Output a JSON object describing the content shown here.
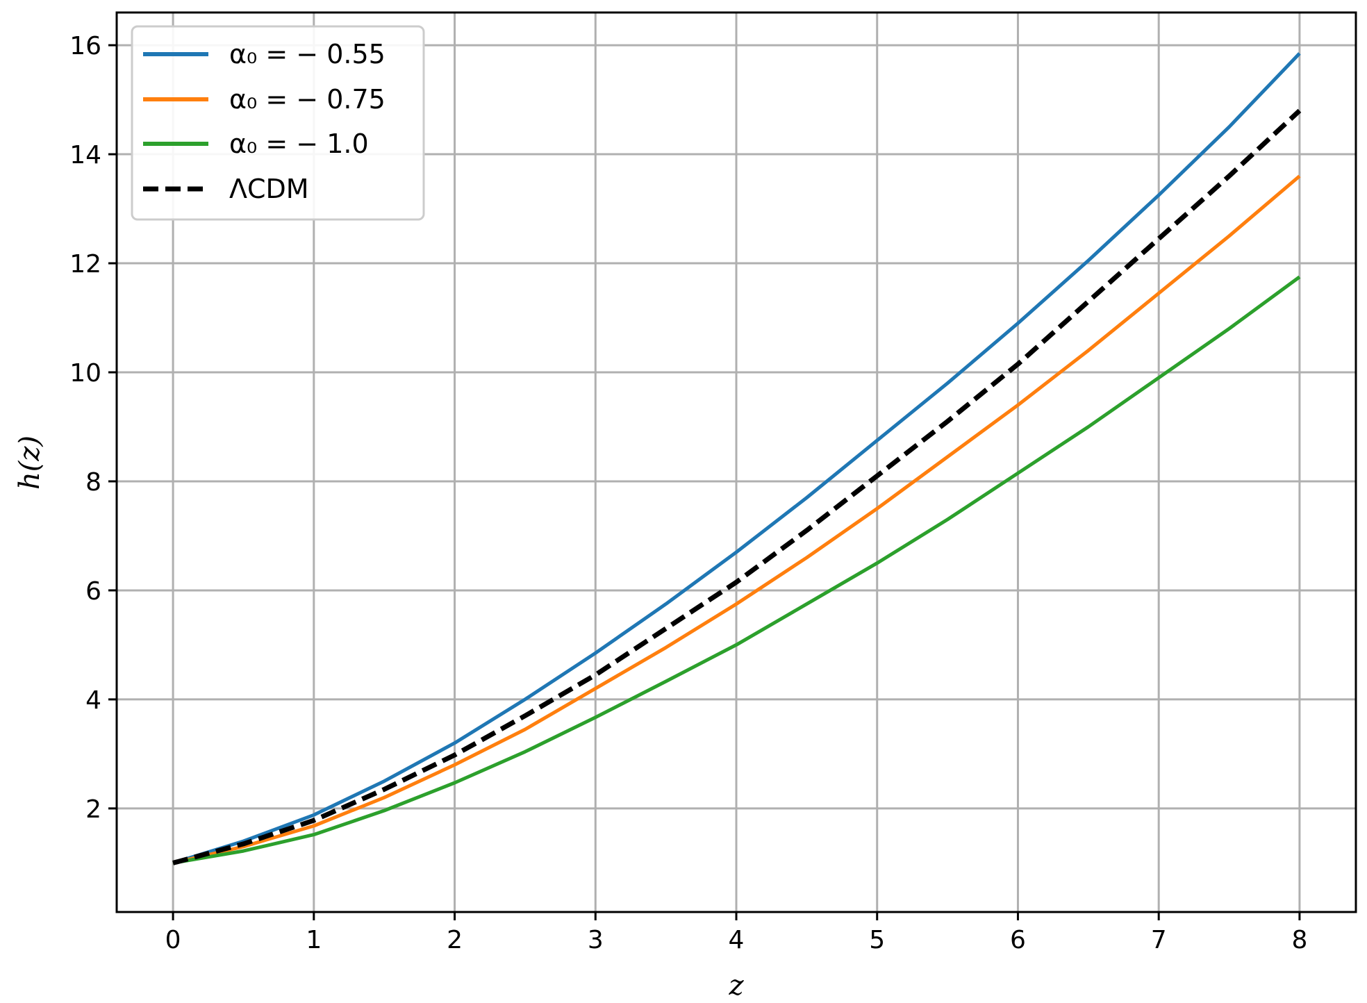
{
  "chart_data": {
    "type": "line",
    "title": "",
    "xlabel": "z",
    "ylabel": "h(z)",
    "xlim": [
      -0.4,
      8.4
    ],
    "ylim": [
      0.1,
      16.6
    ],
    "xticks": [
      0,
      1,
      2,
      3,
      4,
      5,
      6,
      7,
      8
    ],
    "yticks": [
      2,
      4,
      6,
      8,
      10,
      12,
      14,
      16
    ],
    "xtick_labels": [
      "0",
      "1",
      "2",
      "3",
      "4",
      "5",
      "6",
      "7",
      "8"
    ],
    "ytick_labels": [
      "2",
      "4",
      "6",
      "8",
      "10",
      "12",
      "14",
      "16"
    ],
    "grid": true,
    "legend_position": "top-left",
    "x": [
      0,
      0.5,
      1,
      1.5,
      2,
      2.5,
      3,
      3.5,
      4,
      4.5,
      5,
      5.5,
      6,
      6.5,
      7,
      7.5,
      8
    ],
    "series": [
      {
        "name": "α₀ = − 0.55",
        "color": "#1f77b4",
        "dash": "solid",
        "values": [
          1.0,
          1.4,
          1.88,
          2.5,
          3.2,
          4.0,
          4.85,
          5.75,
          6.7,
          7.7,
          8.75,
          9.8,
          10.9,
          12.05,
          13.25,
          14.5,
          15.85
        ]
      },
      {
        "name": "α₀ = − 0.75",
        "color": "#ff7f0e",
        "dash": "solid",
        "values": [
          1.0,
          1.3,
          1.68,
          2.2,
          2.8,
          3.45,
          4.2,
          4.95,
          5.75,
          6.6,
          7.5,
          8.45,
          9.4,
          10.4,
          11.45,
          12.5,
          13.6
        ]
      },
      {
        "name": "α₀ = − 1.0",
        "color": "#2ca02c",
        "dash": "solid",
        "values": [
          1.0,
          1.22,
          1.52,
          1.96,
          2.47,
          3.04,
          3.67,
          4.33,
          5.0,
          5.75,
          6.5,
          7.3,
          8.15,
          9.0,
          9.9,
          10.8,
          11.75
        ]
      },
      {
        "name": "ΛCDM",
        "color": "#000000",
        "dash": "dashed",
        "values": [
          1.0,
          1.35,
          1.78,
          2.35,
          2.98,
          3.7,
          4.45,
          5.3,
          6.15,
          7.1,
          8.1,
          9.1,
          10.15,
          11.3,
          12.45,
          13.6,
          14.8
        ]
      }
    ]
  }
}
